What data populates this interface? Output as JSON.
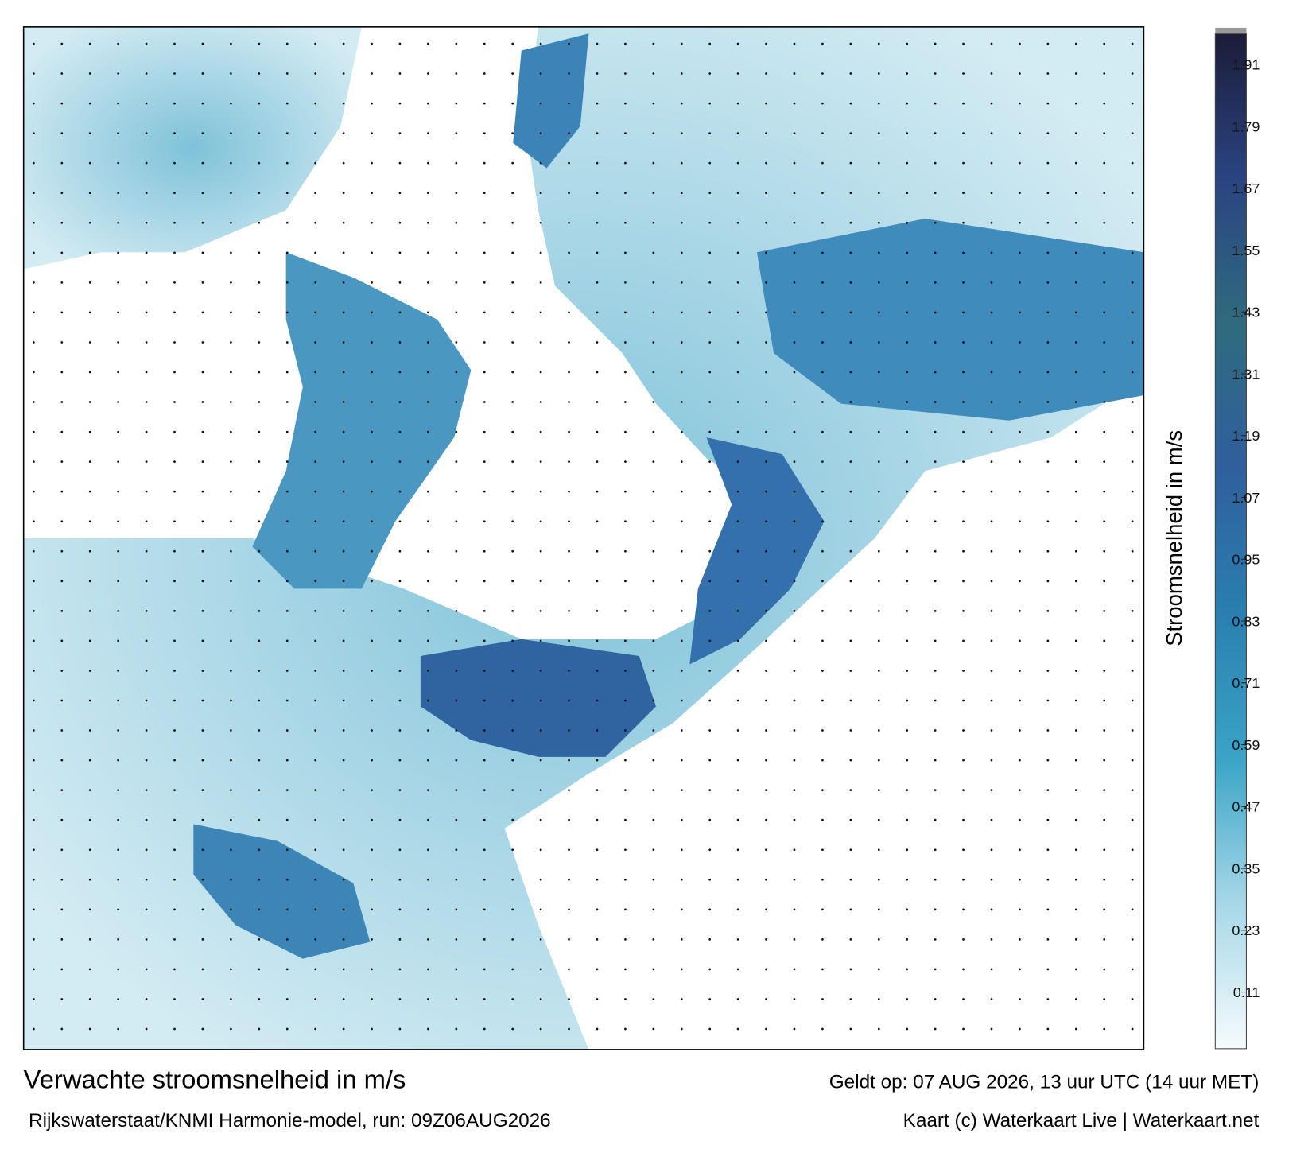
{
  "header": {
    "title": "Verwachte stroomsnelheid in m/s",
    "source": "Rijkswaterstaat/KNMI Harmonie-model, run: 09Z06AUG2026",
    "valid": "Geldt op: 07 AUG 2026, 13 uur UTC (14 uur MET)",
    "credit": "Kaart (c) Waterkaart Live | Waterkaart.net"
  },
  "colorbar": {
    "label": "Stroomsnelheid in m/s",
    "clim": [
      0,
      1.97
    ],
    "ticks": [
      0.11,
      0.23,
      0.35,
      0.47,
      0.59,
      0.71,
      0.83,
      0.95,
      1.07,
      1.19,
      1.31,
      1.43,
      1.55,
      1.67,
      1.79,
      1.91
    ],
    "colors": [
      "#f5fbfd",
      "#a7d8e8",
      "#3aa4c6",
      "#2a7fb0",
      "#2f5f9e",
      "#2f6b7e",
      "#2a4482",
      "#1c1c38"
    ]
  }
}
